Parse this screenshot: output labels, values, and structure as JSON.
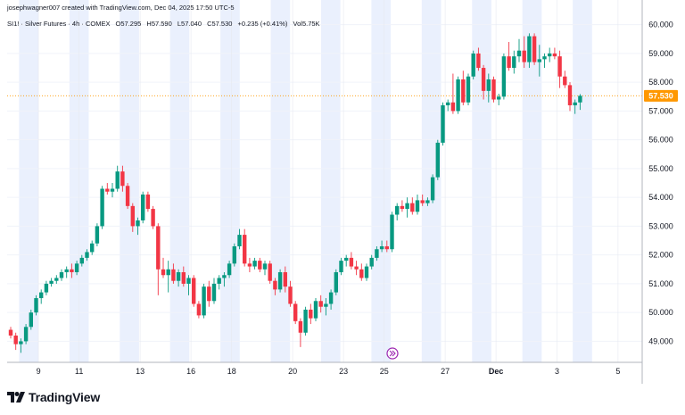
{
  "header": {
    "credit": "josephwagner007 created with TradingView.com, Dec 04, 2025 17:50 UTC-5",
    "symbol": "SI1! · Silver Futures · 4h · COMEX",
    "open": "O57.295",
    "high": "H57.590",
    "low": "L57.040",
    "close": "C57.530",
    "change": "+0.235 (+0.41%)",
    "volume": "Vol5.75K"
  },
  "brand": {
    "name": "TradingView"
  },
  "colors": {
    "up": "#089981",
    "down": "#f23645",
    "session_band": "#eaf0fd",
    "last_price": "#ff9800"
  },
  "chart_data": {
    "type": "candlestick",
    "y_ticks": [
      "60.000",
      "59.000",
      "58.000",
      "57.000",
      "56.000",
      "55.000",
      "54.000",
      "53.000",
      "52.000",
      "51.000",
      "50.000",
      "49.000"
    ],
    "ylim": [
      48.3,
      60.3
    ],
    "last_price": "57.530",
    "x_ticks": [
      {
        "label": "9",
        "i": 3
      },
      {
        "label": "11",
        "i": 11
      },
      {
        "label": "13",
        "i": 23
      },
      {
        "label": "16",
        "i": 33
      },
      {
        "label": "18",
        "i": 41
      },
      {
        "label": "20",
        "i": 53
      },
      {
        "label": "23",
        "i": 63
      },
      {
        "label": "25",
        "i": 71
      },
      {
        "label": "27",
        "i": 83
      },
      {
        "label": "Dec",
        "i": 93,
        "bold": true
      },
      {
        "label": "3",
        "i": 105
      },
      {
        "label": "5",
        "i": 117
      }
    ],
    "candles": [
      [
        49.4,
        49.5,
        49.1,
        49.2
      ],
      [
        49.2,
        49.3,
        48.7,
        48.9
      ],
      [
        48.9,
        49.1,
        48.6,
        49.0
      ],
      [
        49.0,
        49.6,
        48.9,
        49.5
      ],
      [
        49.5,
        50.1,
        49.4,
        50.0
      ],
      [
        50.0,
        50.6,
        49.9,
        50.5
      ],
      [
        50.5,
        50.8,
        50.3,
        50.7
      ],
      [
        50.7,
        51.1,
        50.6,
        51.0
      ],
      [
        51.0,
        51.2,
        50.9,
        51.1
      ],
      [
        51.1,
        51.3,
        51.0,
        51.2
      ],
      [
        51.2,
        51.5,
        51.1,
        51.4
      ],
      [
        51.4,
        51.6,
        51.2,
        51.5
      ],
      [
        51.5,
        51.7,
        51.2,
        51.4
      ],
      [
        51.4,
        51.8,
        51.3,
        51.7
      ],
      [
        51.7,
        52.0,
        51.6,
        51.9
      ],
      [
        51.9,
        52.2,
        51.8,
        52.1
      ],
      [
        52.1,
        52.5,
        52.0,
        52.4
      ],
      [
        52.4,
        53.1,
        52.3,
        53.0
      ],
      [
        53.0,
        54.4,
        52.9,
        54.3
      ],
      [
        54.3,
        54.5,
        54.1,
        54.2
      ],
      [
        54.2,
        54.5,
        54.0,
        54.3
      ],
      [
        54.3,
        55.1,
        54.2,
        54.9
      ],
      [
        54.9,
        55.1,
        54.2,
        54.4
      ],
      [
        54.4,
        54.5,
        53.6,
        53.7
      ],
      [
        53.7,
        53.8,
        52.8,
        53.0
      ],
      [
        53.0,
        53.3,
        52.7,
        53.2
      ],
      [
        53.2,
        54.2,
        53.1,
        54.1
      ],
      [
        54.1,
        54.2,
        53.5,
        53.6
      ],
      [
        53.6,
        53.7,
        52.9,
        53.0
      ],
      [
        53.0,
        53.1,
        50.6,
        51.5
      ],
      [
        51.5,
        51.9,
        51.2,
        51.3
      ],
      [
        51.3,
        51.8,
        50.7,
        51.5
      ],
      [
        51.5,
        51.7,
        51.0,
        51.1
      ],
      [
        51.1,
        51.5,
        50.9,
        51.4
      ],
      [
        51.4,
        51.6,
        50.9,
        51.0
      ],
      [
        51.0,
        51.3,
        50.6,
        51.2
      ],
      [
        51.2,
        51.3,
        50.2,
        50.3
      ],
      [
        50.3,
        50.4,
        49.8,
        49.9
      ],
      [
        49.9,
        51.0,
        49.8,
        50.9
      ],
      [
        50.9,
        51.1,
        50.2,
        50.4
      ],
      [
        50.4,
        51.2,
        50.3,
        51.0
      ],
      [
        51.0,
        51.3,
        50.8,
        51.2
      ],
      [
        51.2,
        51.4,
        50.9,
        51.3
      ],
      [
        51.3,
        51.8,
        51.2,
        51.7
      ],
      [
        51.7,
        52.4,
        51.6,
        52.3
      ],
      [
        52.3,
        52.9,
        52.2,
        52.7
      ],
      [
        52.7,
        52.9,
        51.6,
        51.7
      ],
      [
        51.7,
        51.9,
        51.4,
        51.6
      ],
      [
        51.6,
        51.9,
        51.5,
        51.8
      ],
      [
        51.8,
        51.9,
        51.4,
        51.5
      ],
      [
        51.5,
        51.8,
        51.3,
        51.7
      ],
      [
        51.7,
        51.8,
        51.0,
        51.1
      ],
      [
        51.1,
        51.2,
        50.6,
        50.8
      ],
      [
        50.8,
        51.5,
        50.7,
        51.4
      ],
      [
        51.4,
        51.6,
        50.7,
        50.9
      ],
      [
        50.9,
        51.1,
        50.2,
        50.3
      ],
      [
        50.3,
        50.4,
        49.6,
        49.7
      ],
      [
        49.7,
        49.8,
        48.8,
        49.3
      ],
      [
        49.3,
        50.2,
        49.2,
        50.1
      ],
      [
        50.1,
        50.3,
        49.6,
        49.8
      ],
      [
        49.8,
        50.5,
        49.7,
        50.4
      ],
      [
        50.4,
        50.6,
        50.0,
        50.2
      ],
      [
        50.2,
        50.5,
        49.9,
        50.3
      ],
      [
        50.3,
        50.8,
        50.1,
        50.7
      ],
      [
        50.7,
        51.5,
        50.6,
        51.4
      ],
      [
        51.4,
        51.9,
        51.3,
        51.8
      ],
      [
        51.8,
        52.0,
        51.6,
        51.9
      ],
      [
        51.9,
        52.1,
        51.5,
        51.6
      ],
      [
        51.6,
        51.8,
        51.3,
        51.5
      ],
      [
        51.5,
        51.7,
        51.1,
        51.2
      ],
      [
        51.2,
        51.7,
        51.1,
        51.6
      ],
      [
        51.6,
        52.0,
        51.5,
        51.9
      ],
      [
        51.9,
        52.3,
        51.8,
        52.2
      ],
      [
        52.2,
        52.5,
        52.1,
        52.3
      ],
      [
        52.3,
        52.5,
        52.1,
        52.2
      ],
      [
        52.2,
        53.5,
        52.1,
        53.4
      ],
      [
        53.4,
        53.8,
        53.2,
        53.7
      ],
      [
        53.7,
        53.9,
        53.5,
        53.6
      ],
      [
        53.6,
        54.0,
        53.3,
        53.8
      ],
      [
        53.8,
        54.0,
        53.4,
        53.5
      ],
      [
        53.5,
        54.1,
        53.4,
        53.9
      ],
      [
        53.9,
        54.1,
        53.7,
        53.8
      ],
      [
        53.8,
        54.0,
        53.7,
        53.9
      ],
      [
        53.9,
        54.8,
        53.8,
        54.7
      ],
      [
        54.7,
        56.0,
        54.6,
        55.9
      ],
      [
        55.9,
        57.3,
        55.8,
        57.2
      ],
      [
        57.2,
        57.4,
        57.0,
        57.3
      ],
      [
        57.3,
        58.3,
        56.9,
        57.0
      ],
      [
        57.0,
        58.2,
        56.9,
        58.1
      ],
      [
        58.1,
        58.4,
        57.2,
        57.3
      ],
      [
        57.3,
        58.3,
        57.2,
        58.2
      ],
      [
        58.2,
        59.1,
        58.1,
        59.0
      ],
      [
        59.0,
        59.2,
        58.4,
        58.5
      ],
      [
        58.5,
        58.6,
        57.4,
        57.7
      ],
      [
        57.7,
        58.3,
        57.3,
        58.1
      ],
      [
        58.1,
        58.2,
        57.3,
        57.4
      ],
      [
        57.4,
        57.6,
        57.2,
        57.5
      ],
      [
        57.5,
        59.0,
        57.4,
        58.9
      ],
      [
        58.9,
        59.4,
        58.4,
        58.5
      ],
      [
        58.5,
        59.1,
        58.3,
        58.9
      ],
      [
        58.9,
        59.5,
        58.7,
        59.1
      ],
      [
        59.1,
        59.6,
        58.5,
        58.7
      ],
      [
        58.7,
        59.7,
        58.5,
        59.6
      ],
      [
        59.6,
        59.7,
        58.6,
        58.7
      ],
      [
        58.7,
        59.3,
        58.2,
        58.8
      ],
      [
        58.8,
        59.0,
        58.5,
        58.9
      ],
      [
        58.9,
        59.2,
        58.7,
        59.0
      ],
      [
        59.0,
        59.2,
        58.8,
        58.9
      ],
      [
        58.9,
        59.1,
        57.8,
        58.2
      ],
      [
        58.2,
        58.4,
        57.8,
        57.9
      ],
      [
        57.9,
        58.0,
        57.0,
        57.2
      ],
      [
        57.2,
        57.4,
        56.9,
        57.3
      ],
      [
        57.3,
        57.59,
        57.04,
        57.53
      ]
    ]
  }
}
